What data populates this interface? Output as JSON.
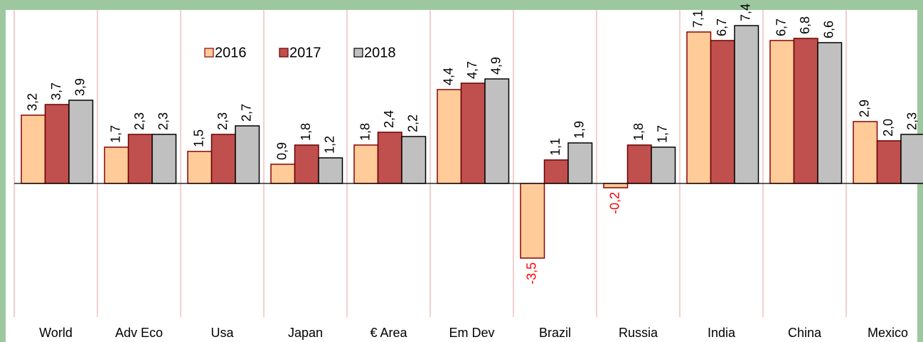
{
  "chart_data": {
    "type": "bar",
    "categories": [
      "World",
      "Adv Eco",
      "Usa",
      "Japan",
      "€ Area",
      "Em Dev",
      "Brazil",
      "Russia",
      "India",
      "China",
      "Mexico"
    ],
    "series": [
      {
        "name": "2016",
        "color": "#ffcc99",
        "edgecolor": "#8b0000",
        "values": [
          3.2,
          1.7,
          1.5,
          0.9,
          1.8,
          4.4,
          -3.5,
          -0.2,
          7.1,
          6.7,
          2.9
        ],
        "value_labels": [
          "3,2",
          "1,7",
          "1,5",
          "0,9",
          "1,8",
          "4,4",
          "-3,5",
          "-0,2",
          "7,1",
          "6,7",
          "2,9"
        ]
      },
      {
        "name": "2017",
        "color": "#c0504d",
        "edgecolor": "#6b0000",
        "values": [
          3.7,
          2.3,
          2.3,
          1.8,
          2.4,
          4.7,
          1.1,
          1.8,
          6.7,
          6.8,
          2.0
        ],
        "value_labels": [
          "3,7",
          "2,3",
          "2,3",
          "1,8",
          "2,4",
          "4,7",
          "1,1",
          "1,8",
          "6,7",
          "6,8",
          "2,0"
        ]
      },
      {
        "name": "2018",
        "color": "#c0c0c0",
        "edgecolor": "#000000",
        "values": [
          3.9,
          2.3,
          2.7,
          1.2,
          2.2,
          4.9,
          1.9,
          1.7,
          7.4,
          6.6,
          2.3
        ],
        "value_labels": [
          "3,9",
          "2,3",
          "2,7",
          "1,2",
          "2,2",
          "4,9",
          "1,9",
          "1,7",
          "7,4",
          "6,6",
          "2,3"
        ]
      }
    ],
    "ylim": [
      -6,
      8
    ],
    "legend": "top",
    "label_color": "#000000",
    "negative_label_color": "#ff0000"
  }
}
